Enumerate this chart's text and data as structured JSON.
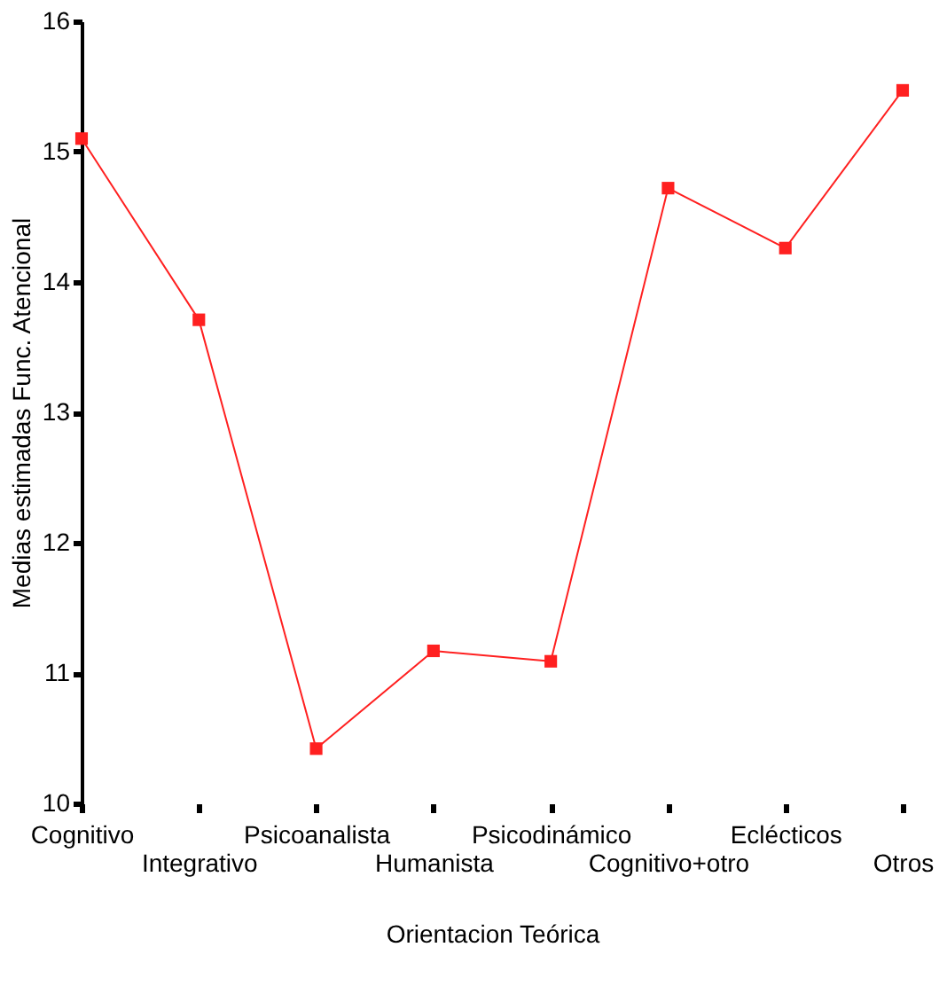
{
  "chart_data": {
    "type": "line",
    "xlabel": "Orientacion Teórica",
    "ylabel": "Medias estimadas Func. Atencional",
    "categories": [
      "Cognitivo",
      "Integrativo",
      "Psicoanalista",
      "Humanista",
      "Psicodinámico",
      "Cognitivo+otro",
      "Eclécticos",
      "Otros"
    ],
    "series": [
      {
        "color": "#ff2020",
        "values": [
          15.1,
          13.71,
          10.42,
          11.17,
          11.09,
          14.72,
          14.26,
          15.47
        ]
      }
    ],
    "ylim": [
      10,
      16
    ],
    "yticks": [
      10,
      11,
      12,
      13,
      14,
      15,
      16
    ],
    "grid": false,
    "legend": false,
    "marker": "square",
    "line_style": "solid"
  }
}
